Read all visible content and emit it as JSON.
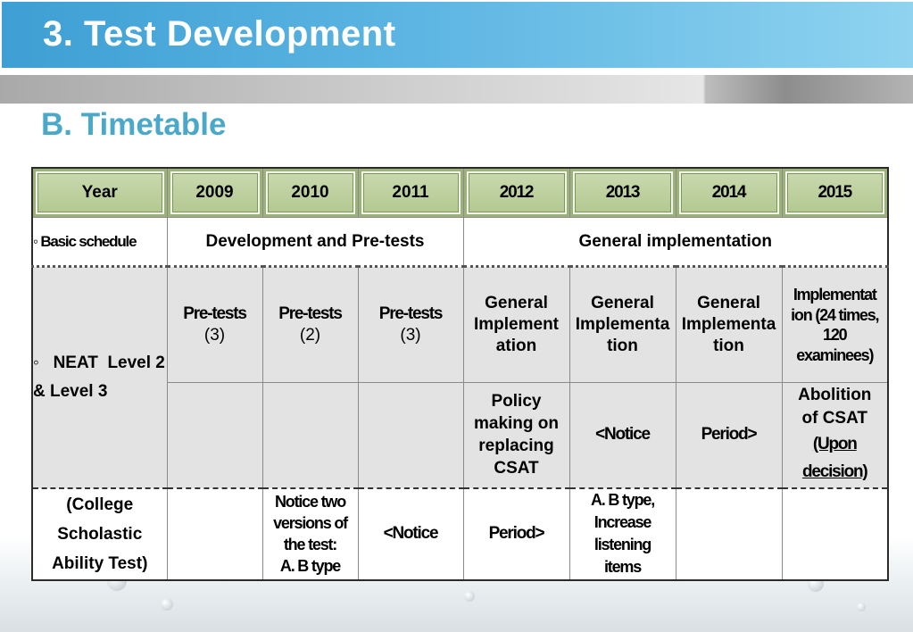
{
  "header": {
    "title": "3. Test Development",
    "subtitle": "B. Timetable"
  },
  "table": {
    "headers": [
      "Year",
      "2009",
      "2010",
      "2011",
      "2012",
      "2013",
      "2014",
      "2015"
    ],
    "basic_schedule": {
      "label": "◦ Basic schedule",
      "dev": "Development and Pre-tests",
      "general": "General implementation"
    },
    "neat": {
      "label": "◦   NEAT  Level 2 & Level 3",
      "pretests": [
        [
          "Pre-tests",
          "(3)"
        ],
        [
          "Pre-tests",
          "(2)"
        ],
        [
          "Pre-tests",
          "(3)"
        ]
      ],
      "gen_2012": [
        "General",
        "Implement",
        "ation"
      ],
      "gen_2013": [
        "General",
        "Implementa",
        "tion"
      ],
      "gen_2014": [
        "General",
        "Implementa",
        "tion"
      ],
      "impl_2015": [
        "Implementat",
        "ion (24 times,",
        "120",
        "examinees)"
      ]
    },
    "csat_plan": {
      "policy": [
        "Policy",
        "making on",
        "replacing",
        "CSAT"
      ],
      "notice": "<Notice",
      "period": "Period>",
      "abolition": [
        "Abolition",
        "of CSAT"
      ],
      "upon": [
        "(Upon",
        "decision)"
      ]
    },
    "csat": {
      "label": [
        "(College",
        "Scholastic",
        "Ability Test)"
      ],
      "notice_2010": [
        "Notice two",
        "versions of",
        "the test:",
        "A. B type"
      ],
      "notice_2011": "<Notice",
      "period_2012": "Period>",
      "type_2013": [
        "A. B type,",
        "Increase",
        "listening",
        "items"
      ]
    }
  },
  "colors": {
    "title_bar": "#4aa8dc",
    "subtitle": "#4aa8c8",
    "header_cell": "#b8cc95",
    "row_gray": "#e3e3e3"
  }
}
